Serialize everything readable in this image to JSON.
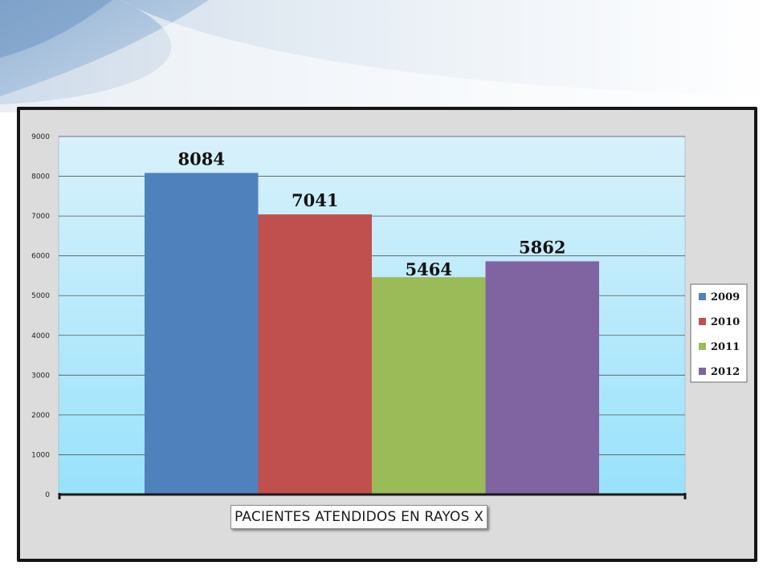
{
  "chart_data": {
    "type": "bar",
    "categories": [
      "2009",
      "2010",
      "2011",
      "2012"
    ],
    "values": [
      8084,
      7041,
      5464,
      5862
    ],
    "data_labels": [
      "8084",
      "7041",
      "5464",
      "5862"
    ],
    "colors": [
      "#4f81bd",
      "#c0504d",
      "#9bbb59",
      "#8064a2"
    ],
    "xlabel": "PACIENTES ATENDIDOS EN RAYOS X",
    "ylabel": "",
    "ylim": [
      0,
      9000
    ],
    "yticks": [
      "0",
      "1000",
      "2000",
      "3000",
      "4000",
      "5000",
      "6000",
      "7000",
      "8000",
      "9000"
    ],
    "grid": true,
    "legend": {
      "position": "right",
      "entries": [
        "2009",
        "2010",
        "2011",
        "2012"
      ]
    }
  }
}
